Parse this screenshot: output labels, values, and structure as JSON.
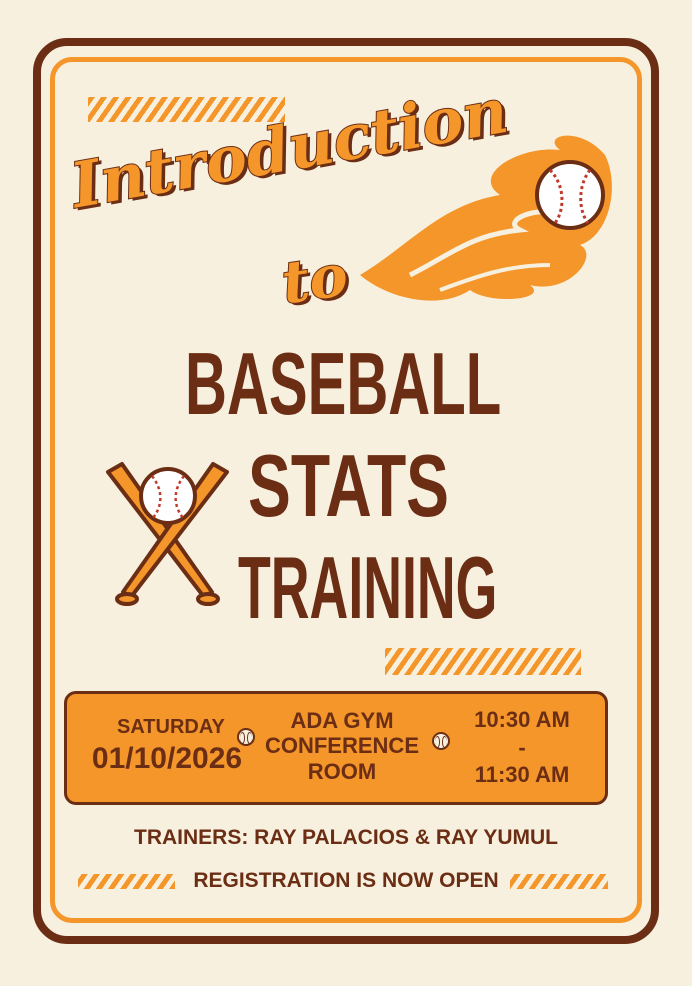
{
  "colors": {
    "background": "#f7f0df",
    "brown": "#6b2e14",
    "orange": "#f4962a"
  },
  "title": {
    "line1": "Introduction",
    "line2": "to"
  },
  "headline": {
    "line1": "BASEBALL",
    "line2": "STATS",
    "line3": "TRAINING"
  },
  "info": {
    "day": "SATURDAY",
    "date": "01/10/2026",
    "venue_line1": "ADA GYM",
    "venue_line2": "CONFERENCE",
    "venue_line3": "ROOM",
    "time_start": "10:30 AM",
    "time_sep": "-",
    "time_end": "11:30 AM",
    "separator_icon": "baseball-icon"
  },
  "trainers": "TRAINERS: RAY PALACIOS & RAY YUMUL",
  "registration": "REGISTRATION IS NOW OPEN",
  "icons": [
    "flaming-baseball-icon",
    "crossed-bats-baseball-icon"
  ]
}
